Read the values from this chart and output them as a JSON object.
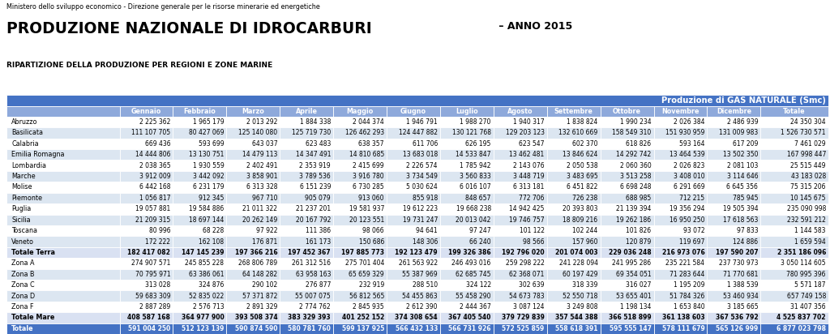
{
  "header_top": "Ministero dello sviluppo economico - Direzione generale per le risorse minerarie ed energetiche",
  "title_part1": "PRODUZIONE NAZIONALE DI IDROCARBURI",
  "title_part2": " – ANNO 2015",
  "subtitle": "RIPARTIZIONE DELLA PRODUZIONE PER REGIONI E ZONE MARINE",
  "table_title": "Produzione di GAS NATURALE (Smc)",
  "columns": [
    "",
    "Gennaio",
    "Febbraio",
    "Marzo",
    "Aprile",
    "Maggio",
    "Giugno",
    "Luglio",
    "Agosto",
    "Settembre",
    "Ottobre",
    "Novembre",
    "Dicembre",
    "Totale"
  ],
  "rows": [
    [
      "Abruzzo",
      "2 225 362",
      "1 965 179",
      "2 013 292",
      "1 884 338",
      "2 044 374",
      "1 946 791",
      "1 988 270",
      "1 940 317",
      "1 838 824",
      "1 990 234",
      "2 026 384",
      "2 486 939",
      "24 350 304"
    ],
    [
      "Basilicata",
      "111 107 705",
      "80 427 069",
      "125 140 080",
      "125 719 730",
      "126 462 293",
      "124 447 882",
      "130 121 768",
      "129 203 123",
      "132 610 669",
      "158 549 310",
      "151 930 959",
      "131 009 983",
      "1 526 730 571"
    ],
    [
      "Calabria",
      "669 436",
      "593 699",
      "643 037",
      "623 483",
      "638 357",
      "611 706",
      "626 195",
      "623 547",
      "602 370",
      "618 826",
      "593 164",
      "617 209",
      "7 461 029"
    ],
    [
      "Emilia Romagna",
      "14 444 806",
      "13 130 751",
      "14 479 113",
      "14 347 491",
      "14 810 685",
      "13 683 018",
      "14 533 847",
      "13 462 481",
      "13 846 624",
      "14 292 742",
      "13 464 539",
      "13 502 350",
      "167 998 447"
    ],
    [
      "Lombardia",
      "2 038 365",
      "1 930 559",
      "2 402 491",
      "2 353 919",
      "2 415 699",
      "2 226 574",
      "1 785 942",
      "2 143 076",
      "2 050 538",
      "2 060 360",
      "2 026 823",
      "2 081 103",
      "25 515 449"
    ],
    [
      "Marche",
      "3 912 009",
      "3 442 092",
      "3 858 901",
      "3 789 536",
      "3 916 780",
      "3 734 549",
      "3 560 833",
      "3 448 719",
      "3 483 695",
      "3 513 258",
      "3 408 010",
      "3 114 646",
      "43 183 028"
    ],
    [
      "Molise",
      "6 442 168",
      "6 231 179",
      "6 313 328",
      "6 151 239",
      "6 730 285",
      "5 030 624",
      "6 016 107",
      "6 313 181",
      "6 451 822",
      "6 698 248",
      "6 291 669",
      "6 645 356",
      "75 315 206"
    ],
    [
      "Piemonte",
      "1 056 817",
      "912 345",
      "967 710",
      "905 079",
      "913 060",
      "855 918",
      "848 657",
      "772 706",
      "726 238",
      "688 985",
      "712 215",
      "785 945",
      "10 145 675"
    ],
    [
      "Puglia",
      "19 057 881",
      "19 584 886",
      "21 011 322",
      "21 237 201",
      "19 581 937",
      "19 612 223",
      "19 668 238",
      "14 942 425",
      "20 393 803",
      "21 139 394",
      "19 356 294",
      "19 505 394",
      "235 090 998"
    ],
    [
      "Sicilia",
      "21 209 315",
      "18 697 144",
      "20 262 149",
      "20 167 792",
      "20 123 551",
      "19 731 247",
      "20 013 042",
      "19 746 757",
      "18 809 216",
      "19 262 186",
      "16 950 250",
      "17 618 563",
      "232 591 212"
    ],
    [
      "Toscana",
      "80 996",
      "68 228",
      "97 922",
      "111 386",
      "98 066",
      "94 641",
      "97 247",
      "101 122",
      "102 244",
      "101 826",
      "93 072",
      "97 833",
      "1 144 583"
    ],
    [
      "Veneto",
      "172 222",
      "162 108",
      "176 871",
      "161 173",
      "150 686",
      "148 306",
      "66 240",
      "98 566",
      "157 960",
      "120 879",
      "119 697",
      "124 886",
      "1 659 594"
    ],
    [
      "Totale Terra",
      "182 417 082",
      "147 145 239",
      "197 366 216",
      "197 452 367",
      "197 885 773",
      "192 123 479",
      "199 326 386",
      "192 796 020",
      "201 074 003",
      "229 036 248",
      "216 973 076",
      "197 590 207",
      "2 351 186 096"
    ],
    [
      "Zona A",
      "274 907 571",
      "245 855 228",
      "268 806 789",
      "261 312 516",
      "275 701 404",
      "261 563 922",
      "246 493 016",
      "259 298 222",
      "241 228 094",
      "241 995 286",
      "235 221 584",
      "237 730 973",
      "3 050 114 605"
    ],
    [
      "Zona B",
      "70 795 971",
      "63 386 061",
      "64 148 282",
      "63 958 163",
      "65 659 329",
      "55 387 969",
      "62 685 745",
      "62 368 071",
      "60 197 429",
      "69 354 051",
      "71 283 644",
      "71 770 681",
      "780 995 396"
    ],
    [
      "Zona C",
      "313 028",
      "324 876",
      "290 102",
      "276 877",
      "232 919",
      "288 510",
      "324 122",
      "302 639",
      "318 339",
      "316 027",
      "1 195 209",
      "1 388 539",
      "5 571 187"
    ],
    [
      "Zona D",
      "59 683 309",
      "52 835 022",
      "57 371 872",
      "55 007 075",
      "56 812 565",
      "54 455 863",
      "55 458 290",
      "54 673 783",
      "52 550 718",
      "53 655 401",
      "51 784 326",
      "53 460 934",
      "657 749 158"
    ],
    [
      "Zona F",
      "2 887 289",
      "2 576 713",
      "2 891 329",
      "2 774 762",
      "2 845 935",
      "2 612 390",
      "2 444 367",
      "3 087 124",
      "3 249 808",
      "1 198 134",
      "1 653 840",
      "3 185 665",
      "31 407 356"
    ],
    [
      "Totale Mare",
      "408 587 168",
      "364 977 900",
      "393 508 374",
      "383 329 393",
      "401 252 152",
      "374 308 654",
      "367 405 540",
      "379 729 839",
      "357 544 388",
      "366 518 899",
      "361 138 603",
      "367 536 792",
      "4 525 837 702"
    ],
    [
      "Totale",
      "591 004 250",
      "512 123 139",
      "590 874 590",
      "580 781 760",
      "599 137 925",
      "566 432 133",
      "566 731 926",
      "572 525 859",
      "558 618 391",
      "595 555 147",
      "578 111 679",
      "565 126 999",
      "6 877 023 798"
    ]
  ],
  "row_colors": [
    "white",
    "light",
    "white",
    "light",
    "white",
    "light",
    "white",
    "light",
    "white",
    "light",
    "white",
    "light",
    "subheader",
    "white",
    "light",
    "white",
    "light",
    "white",
    "subheader",
    "blue_total"
  ],
  "header_bg": "#4472C4",
  "header_fg": "#FFFFFF",
  "subheader_bg": "#D9E1F2",
  "subheader_fg": "#000000",
  "white_bg": "#FFFFFF",
  "light_bg": "#DCE6F1",
  "col_header_bg": "#8EA9DB",
  "col_header_fg": "#FFFFFF",
  "totale_bg": "#4472C4",
  "totale_fg": "#FFFFFF"
}
